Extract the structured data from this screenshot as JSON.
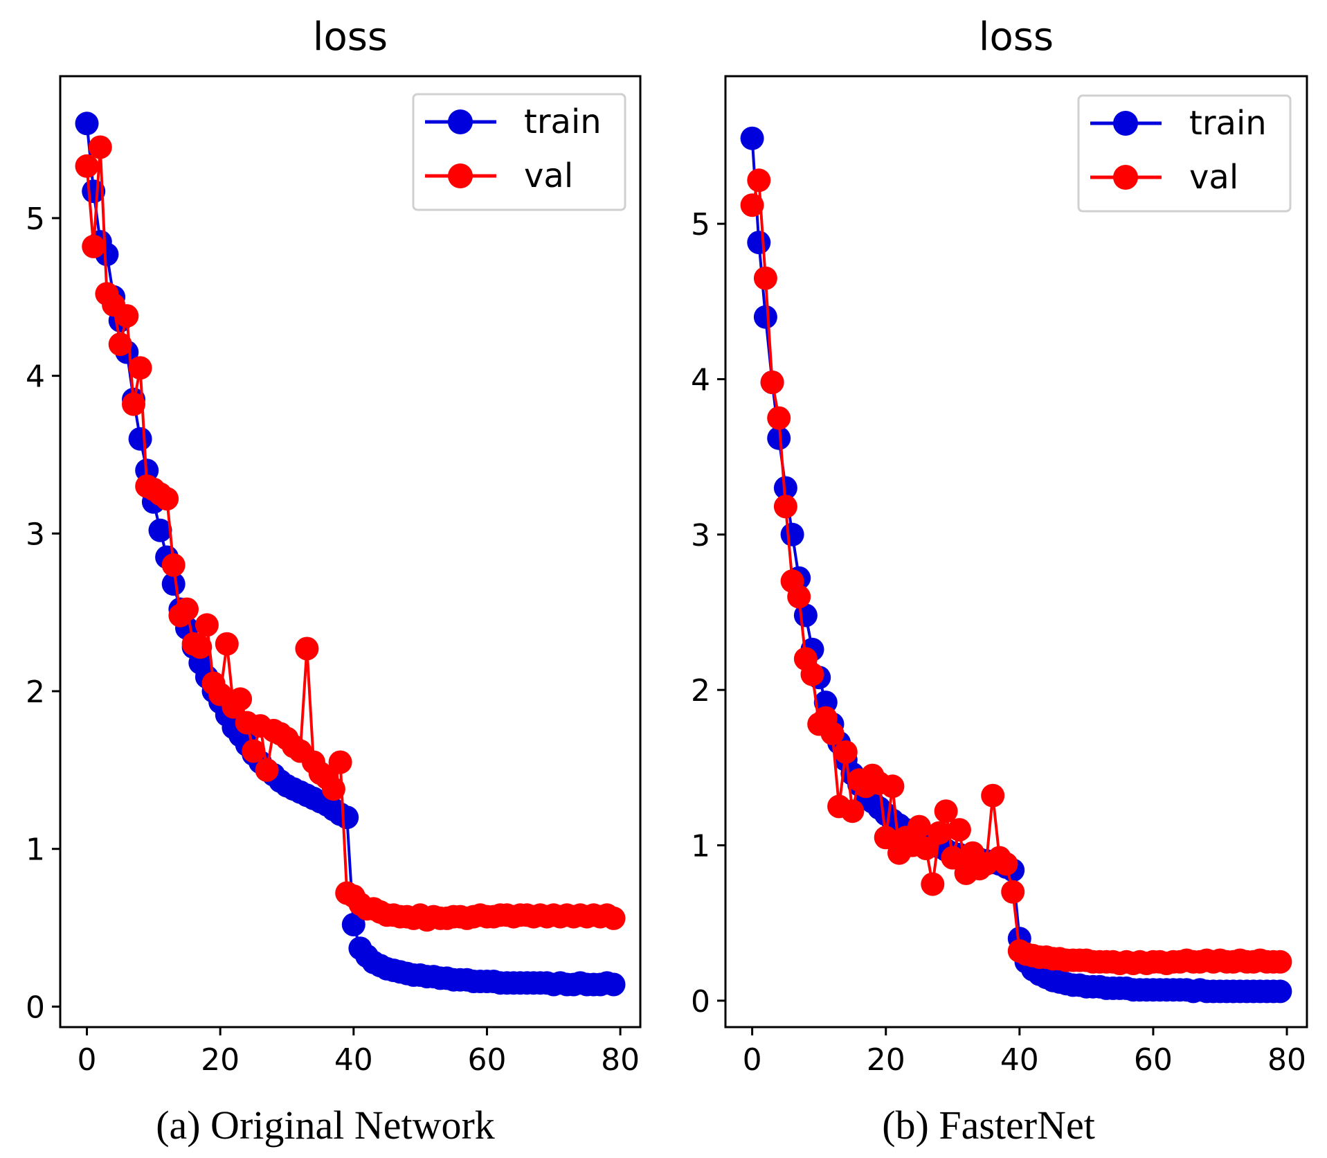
{
  "chart_data": [
    {
      "type": "line",
      "title": "loss",
      "caption": "(a) Original Network",
      "xlabel": "",
      "ylabel": "",
      "xlim": [
        -4,
        83
      ],
      "ylim": [
        -0.13,
        5.9
      ],
      "xticks": [
        0,
        20,
        40,
        60,
        80
      ],
      "yticks": [
        0,
        1,
        2,
        3,
        4,
        5
      ],
      "legend_position": "top-right",
      "colors": {
        "train": "#0000dd",
        "val": "#ff0000"
      },
      "series": [
        {
          "name": "train",
          "x": [
            0,
            1,
            2,
            3,
            4,
            5,
            6,
            7,
            8,
            9,
            10,
            11,
            12,
            13,
            14,
            15,
            16,
            17,
            18,
            19,
            20,
            21,
            22,
            23,
            24,
            25,
            26,
            27,
            28,
            29,
            30,
            31,
            32,
            33,
            34,
            35,
            36,
            37,
            38,
            39,
            40,
            41,
            42,
            43,
            44,
            45,
            46,
            47,
            48,
            49,
            50,
            51,
            52,
            53,
            54,
            55,
            56,
            57,
            58,
            59,
            60,
            61,
            62,
            63,
            64,
            65,
            66,
            67,
            68,
            69,
            70,
            71,
            72,
            73,
            74,
            75,
            76,
            77,
            78,
            79
          ],
          "values": [
            5.6,
            5.17,
            4.85,
            4.77,
            4.5,
            4.35,
            4.15,
            3.85,
            3.6,
            3.4,
            3.2,
            3.02,
            2.85,
            2.68,
            2.52,
            2.4,
            2.28,
            2.18,
            2.09,
            2.0,
            1.93,
            1.85,
            1.77,
            1.72,
            1.66,
            1.6,
            1.55,
            1.5,
            1.47,
            1.43,
            1.4,
            1.38,
            1.36,
            1.34,
            1.32,
            1.3,
            1.28,
            1.25,
            1.22,
            1.2,
            0.52,
            0.37,
            0.32,
            0.28,
            0.26,
            0.24,
            0.23,
            0.22,
            0.21,
            0.2,
            0.2,
            0.19,
            0.19,
            0.18,
            0.18,
            0.17,
            0.17,
            0.17,
            0.16,
            0.16,
            0.16,
            0.16,
            0.15,
            0.15,
            0.15,
            0.15,
            0.15,
            0.15,
            0.15,
            0.15,
            0.14,
            0.15,
            0.14,
            0.14,
            0.15,
            0.14,
            0.14,
            0.14,
            0.15,
            0.14
          ]
        },
        {
          "name": "val",
          "x": [
            0,
            1,
            2,
            3,
            4,
            5,
            6,
            7,
            8,
            9,
            10,
            11,
            12,
            13,
            14,
            15,
            16,
            17,
            18,
            19,
            20,
            21,
            22,
            23,
            24,
            25,
            26,
            27,
            28,
            29,
            30,
            31,
            32,
            33,
            34,
            35,
            36,
            37,
            38,
            39,
            40,
            41,
            42,
            43,
            44,
            45,
            46,
            47,
            48,
            49,
            50,
            51,
            52,
            53,
            54,
            55,
            56,
            57,
            58,
            59,
            60,
            61,
            62,
            63,
            64,
            65,
            66,
            67,
            68,
            69,
            70,
            71,
            72,
            73,
            74,
            75,
            76,
            77,
            78,
            79
          ],
          "values": [
            5.33,
            4.82,
            5.45,
            4.52,
            4.45,
            4.2,
            4.38,
            3.82,
            4.05,
            3.3,
            3.28,
            3.25,
            3.22,
            2.8,
            2.48,
            2.52,
            2.3,
            2.28,
            2.42,
            2.05,
            1.98,
            2.3,
            1.9,
            1.95,
            1.8,
            1.62,
            1.78,
            1.5,
            1.75,
            1.73,
            1.7,
            1.65,
            1.62,
            2.27,
            1.55,
            1.48,
            1.45,
            1.38,
            1.55,
            0.72,
            0.7,
            0.65,
            0.62,
            0.62,
            0.6,
            0.58,
            0.58,
            0.57,
            0.57,
            0.56,
            0.58,
            0.55,
            0.57,
            0.56,
            0.56,
            0.57,
            0.57,
            0.56,
            0.57,
            0.58,
            0.57,
            0.57,
            0.58,
            0.58,
            0.57,
            0.58,
            0.58,
            0.57,
            0.58,
            0.57,
            0.58,
            0.57,
            0.58,
            0.57,
            0.58,
            0.57,
            0.58,
            0.57,
            0.58,
            0.56
          ]
        }
      ]
    },
    {
      "type": "line",
      "title": "loss",
      "caption": "(b) FasterNet",
      "xlabel": "",
      "ylabel": "",
      "xlim": [
        -4,
        83
      ],
      "ylim": [
        -0.17,
        5.95
      ],
      "xticks": [
        0,
        20,
        40,
        60,
        80
      ],
      "yticks": [
        0,
        1,
        2,
        3,
        4,
        5
      ],
      "legend_position": "top-right",
      "colors": {
        "train": "#0000dd",
        "val": "#ff0000"
      },
      "series": [
        {
          "name": "train",
          "x": [
            0,
            1,
            2,
            3,
            4,
            5,
            6,
            7,
            8,
            9,
            10,
            11,
            12,
            13,
            14,
            15,
            16,
            17,
            18,
            19,
            20,
            21,
            22,
            23,
            24,
            25,
            26,
            27,
            28,
            29,
            30,
            31,
            32,
            33,
            34,
            35,
            36,
            37,
            38,
            39,
            40,
            41,
            42,
            43,
            44,
            45,
            46,
            47,
            48,
            49,
            50,
            51,
            52,
            53,
            54,
            55,
            56,
            57,
            58,
            59,
            60,
            61,
            62,
            63,
            64,
            65,
            66,
            67,
            68,
            69,
            70,
            71,
            72,
            73,
            74,
            75,
            76,
            77,
            78,
            79
          ],
          "values": [
            5.55,
            4.88,
            4.4,
            3.98,
            3.62,
            3.3,
            3.0,
            2.72,
            2.48,
            2.26,
            2.08,
            1.92,
            1.78,
            1.66,
            1.55,
            1.46,
            1.39,
            1.33,
            1.28,
            1.24,
            1.2,
            1.16,
            1.13,
            1.1,
            1.07,
            1.05,
            1.03,
            1.01,
            0.99,
            0.97,
            0.95,
            0.94,
            0.93,
            0.92,
            0.91,
            0.9,
            0.89,
            0.88,
            0.86,
            0.84,
            0.4,
            0.25,
            0.2,
            0.17,
            0.15,
            0.13,
            0.12,
            0.11,
            0.1,
            0.1,
            0.09,
            0.09,
            0.09,
            0.08,
            0.08,
            0.08,
            0.08,
            0.07,
            0.07,
            0.07,
            0.07,
            0.07,
            0.07,
            0.07,
            0.07,
            0.07,
            0.06,
            0.07,
            0.06,
            0.06,
            0.06,
            0.06,
            0.06,
            0.06,
            0.06,
            0.06,
            0.06,
            0.06,
            0.06,
            0.06
          ]
        },
        {
          "name": "val",
          "x": [
            0,
            1,
            2,
            3,
            4,
            5,
            6,
            7,
            8,
            9,
            10,
            11,
            12,
            13,
            14,
            15,
            16,
            17,
            18,
            19,
            20,
            21,
            22,
            23,
            24,
            25,
            26,
            27,
            28,
            29,
            30,
            31,
            32,
            33,
            34,
            35,
            36,
            37,
            38,
            39,
            40,
            41,
            42,
            43,
            44,
            45,
            46,
            47,
            48,
            49,
            50,
            51,
            52,
            53,
            54,
            55,
            56,
            57,
            58,
            59,
            60,
            61,
            62,
            63,
            64,
            65,
            66,
            67,
            68,
            69,
            70,
            71,
            72,
            73,
            74,
            75,
            76,
            77,
            78,
            79
          ],
          "values": [
            5.12,
            5.28,
            4.65,
            3.98,
            3.75,
            3.18,
            2.7,
            2.6,
            2.2,
            2.1,
            1.78,
            1.82,
            1.72,
            1.25,
            1.6,
            1.22,
            1.42,
            1.38,
            1.45,
            1.4,
            1.05,
            1.38,
            0.95,
            1.05,
            1.0,
            1.12,
            0.98,
            0.75,
            1.08,
            1.22,
            0.92,
            1.1,
            0.82,
            0.95,
            0.85,
            0.88,
            1.32,
            0.92,
            0.88,
            0.7,
            0.32,
            0.3,
            0.29,
            0.28,
            0.28,
            0.27,
            0.27,
            0.26,
            0.26,
            0.26,
            0.26,
            0.25,
            0.25,
            0.25,
            0.25,
            0.24,
            0.25,
            0.24,
            0.25,
            0.24,
            0.25,
            0.25,
            0.24,
            0.25,
            0.25,
            0.26,
            0.25,
            0.25,
            0.26,
            0.25,
            0.26,
            0.25,
            0.25,
            0.26,
            0.25,
            0.25,
            0.26,
            0.25,
            0.25,
            0.25
          ]
        }
      ]
    }
  ]
}
